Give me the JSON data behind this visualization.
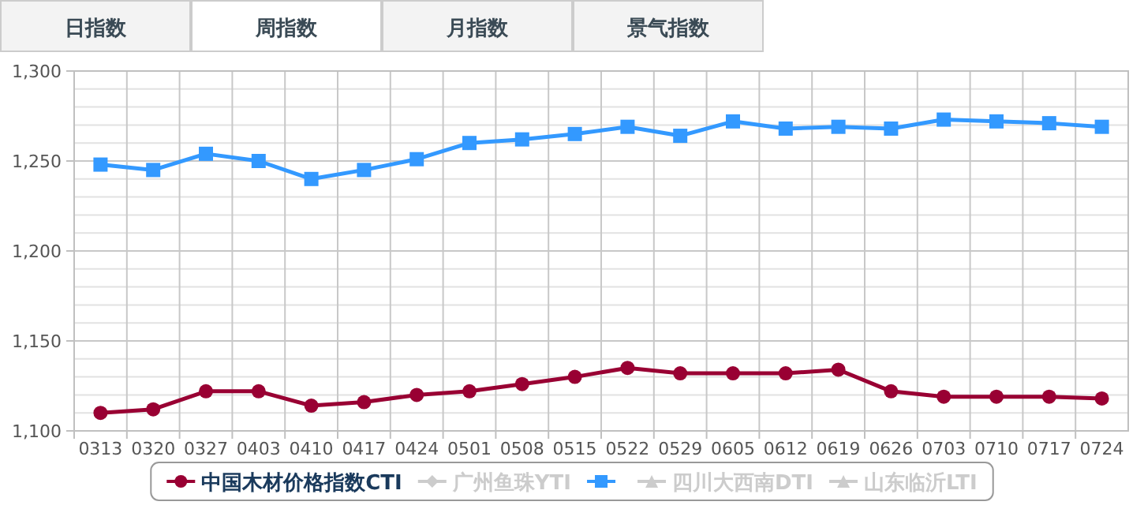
{
  "chart_data": {
    "type": "line",
    "categories": [
      "0313",
      "0320",
      "0327",
      "0403",
      "0410",
      "0417",
      "0424",
      "0501",
      "0508",
      "0515",
      "0522",
      "0529",
      "0605",
      "0612",
      "0619",
      "0626",
      "0703",
      "0710",
      "0717",
      "0724"
    ],
    "series": [
      {
        "name": "中国木材价格指数CTI",
        "color": "#990033",
        "marker": "circle",
        "values": [
          1110,
          1112,
          1122,
          1122,
          1114,
          1116,
          1120,
          1122,
          1126,
          1130,
          1135,
          1132,
          1132,
          1132,
          1134,
          1122,
          1119,
          1119,
          1119,
          1118
        ]
      },
      {
        "name": "广州鱼珠YTI",
        "color": "#cccccc",
        "marker": "diamond",
        "values": [
          null,
          null,
          null,
          null,
          null,
          null,
          null,
          null,
          null,
          null,
          null,
          null,
          null,
          null,
          null,
          null,
          null,
          null,
          null,
          null
        ]
      },
      {
        "color": "#3399ff",
        "marker": "square",
        "values": [
          1248,
          1245,
          1254,
          1250,
          1240,
          1245,
          1251,
          1260,
          1262,
          1265,
          1269,
          1264,
          1272,
          1268,
          1269,
          1268,
          1273,
          1272,
          1271,
          1269
        ]
      },
      {
        "name": "四川大西南DTI",
        "color": "#cccccc",
        "marker": "triangle",
        "values": [
          null,
          null,
          null,
          null,
          null,
          null,
          null,
          null,
          null,
          null,
          null,
          null,
          null,
          null,
          null,
          null,
          null,
          null,
          null,
          null
        ]
      },
      {
        "name": "山东临沂LTI",
        "color": "#cccccc",
        "marker": "triangle",
        "values": [
          null,
          null,
          null,
          null,
          null,
          null,
          null,
          null,
          null,
          null,
          null,
          null,
          null,
          null,
          null,
          null,
          null,
          null,
          null,
          null
        ]
      }
    ],
    "ylim": [
      1100,
      1300
    ],
    "yticks": [
      {
        "value": 1100,
        "label": "1,100"
      },
      {
        "value": 1150,
        "label": "1,150"
      },
      {
        "value": 1200,
        "label": "1,200"
      },
      {
        "value": 1250,
        "label": "1,250"
      },
      {
        "value": 1300,
        "label": "1,300"
      }
    ],
    "grid": true,
    "legend": "bottom",
    "annotations": [
      "日指数",
      "周指数",
      "月指数",
      "景气指数"
    ]
  }
}
